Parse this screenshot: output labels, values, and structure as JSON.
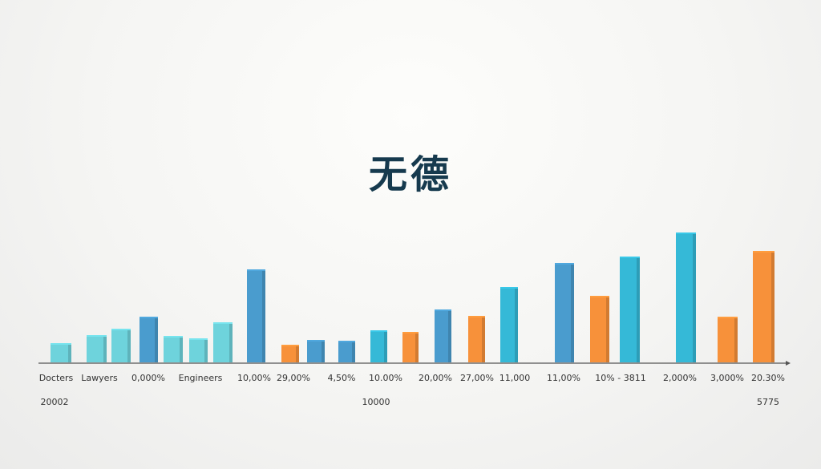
{
  "chart_data": {
    "type": "bar",
    "title": "无德",
    "xlabel": "",
    "ylabel": "",
    "grid": false,
    "colors": {
      "light_cyan": "#6ed3dc",
      "blue": "#4a9cce",
      "cyan": "#35b9d7",
      "orange": "#f7913a"
    },
    "values": [
      24,
      34,
      42,
      57,
      33,
      30,
      50,
      116,
      22,
      28,
      27,
      40,
      38,
      66,
      58,
      94,
      124,
      83,
      132,
      162,
      57,
      139
    ],
    "bar_colors": [
      "light_cyan",
      "light_cyan",
      "light_cyan",
      "blue",
      "light_cyan",
      "light_cyan",
      "light_cyan",
      "blue",
      "orange",
      "blue",
      "blue",
      "cyan",
      "orange",
      "blue",
      "orange",
      "cyan",
      "blue",
      "orange",
      "cyan",
      "cyan",
      "orange",
      "orange"
    ],
    "tick_labels": [
      "Docters",
      "Lawyers",
      "0,000%",
      "Engineers",
      "10,00%",
      "29,00%",
      "4,50%",
      "10.00%",
      "20,00%",
      "27,00%",
      "11,000",
      "11,00%",
      "10% - 3811",
      "2,000%",
      "3,000%",
      "20.30%"
    ],
    "secondary_labels": [
      "20002",
      "10000",
      "5775"
    ]
  }
}
